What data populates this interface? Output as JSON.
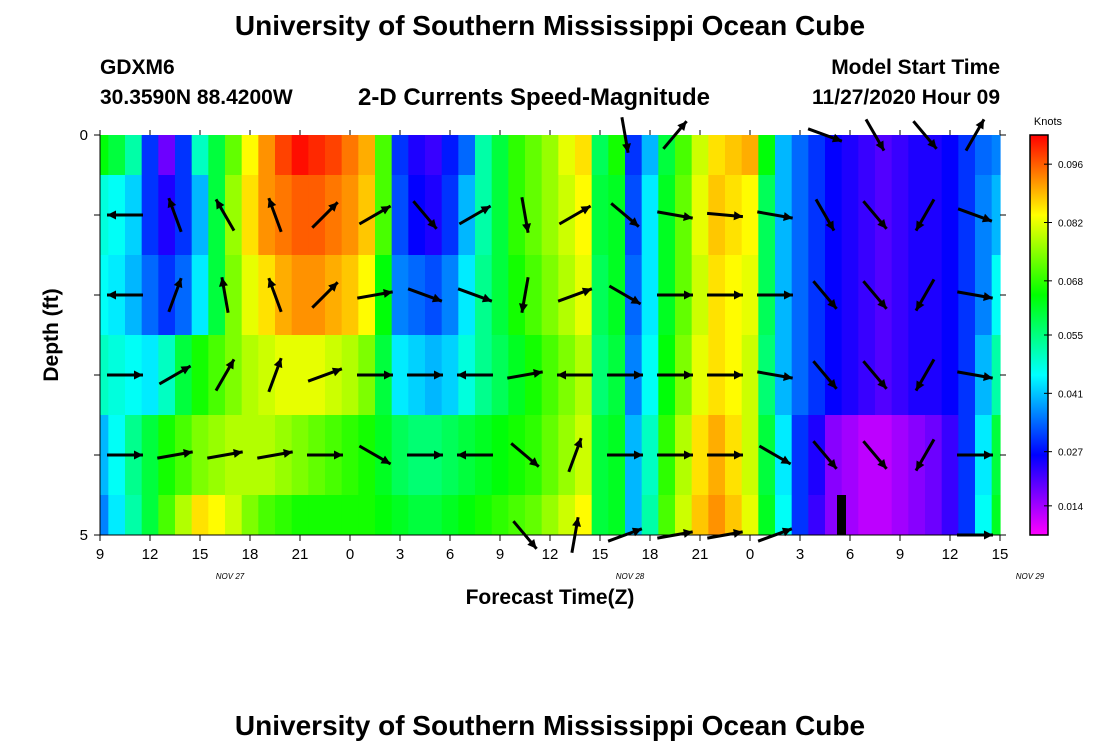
{
  "title": "University of Southern Mississippi Ocean Cube",
  "footer_title": "University of Southern Mississippi Ocean Cube",
  "station": "GDXM6",
  "coordinates": "30.3590N 88.4200W",
  "model_start_label": "Model Start Time",
  "model_start_value": "11/27/2020 Hour 09",
  "chart_data": {
    "type": "heatmap",
    "title": "2-D Currents Speed-Magnitude",
    "xlabel": "Forecast Time(Z)",
    "ylabel": "Depth (ft)",
    "ylim": [
      0,
      5
    ],
    "y_ticks": [
      "0",
      "5"
    ],
    "x_ticks": [
      "9",
      "12",
      "15",
      "18",
      "21",
      "0",
      "3",
      "6",
      "9",
      "12",
      "15",
      "18",
      "21",
      "0",
      "3",
      "6",
      "9",
      "12",
      "15"
    ],
    "date_labels": [
      {
        "text": "NOV 27",
        "at_tick": 3
      },
      {
        "text": "NOV 28",
        "at_tick": 11
      },
      {
        "text": "NOV 29",
        "at_tick": 19
      }
    ],
    "colorbar": {
      "unit": "Knots",
      "min": 0.007,
      "max": 0.103,
      "ticks": [
        0.014,
        0.027,
        0.041,
        0.055,
        0.068,
        0.082,
        0.096
      ],
      "tick_labels": [
        "0.014",
        "0.027",
        "0.041",
        "0.055",
        "0.068",
        "0.082",
        "0.096"
      ]
    },
    "time_hours": [
      0,
      1,
      2,
      3,
      4,
      5,
      6,
      7,
      8,
      9,
      10,
      11,
      12,
      13,
      14,
      15,
      16,
      17,
      18,
      19,
      20,
      21,
      22,
      23,
      24,
      25,
      26,
      27,
      28,
      29,
      30,
      31,
      32,
      33,
      34,
      35,
      36,
      37,
      38,
      39,
      40,
      41,
      42,
      43,
      44,
      45,
      46,
      47,
      48,
      49,
      50,
      51,
      52,
      53,
      54
    ],
    "depth_layers_ft": [
      "0.0-0.5",
      "0.5-1.5",
      "1.5-2.5",
      "2.5-3.5",
      "3.5-4.5",
      "4.5-5.0"
    ],
    "speed_knots": [
      [
        0.064,
        0.06,
        0.052,
        0.03,
        0.018,
        0.03,
        0.05,
        0.06,
        0.072,
        0.084,
        0.092,
        0.098,
        0.102,
        0.1,
        0.098,
        0.094,
        0.09,
        0.07,
        0.03,
        0.024,
        0.022,
        0.028,
        0.034,
        0.052,
        0.06,
        0.068,
        0.072,
        0.076,
        0.082,
        0.086,
        0.058,
        0.066,
        0.03,
        0.04,
        0.06,
        0.07,
        0.08,
        0.086,
        0.088,
        0.09,
        0.064,
        0.04,
        0.034,
        0.03,
        0.026,
        0.024,
        0.022,
        0.02,
        0.022,
        0.024,
        0.024,
        0.026,
        0.03,
        0.034,
        0.036
      ],
      [
        0.048,
        0.046,
        0.042,
        0.03,
        0.024,
        0.03,
        0.04,
        0.06,
        0.076,
        0.086,
        0.092,
        0.094,
        0.096,
        0.096,
        0.094,
        0.092,
        0.088,
        0.07,
        0.032,
        0.026,
        0.024,
        0.03,
        0.04,
        0.052,
        0.06,
        0.068,
        0.072,
        0.076,
        0.08,
        0.084,
        0.06,
        0.062,
        0.032,
        0.044,
        0.062,
        0.072,
        0.082,
        0.088,
        0.086,
        0.084,
        0.058,
        0.04,
        0.034,
        0.03,
        0.026,
        0.024,
        0.022,
        0.02,
        0.022,
        0.024,
        0.024,
        0.026,
        0.03,
        0.036,
        0.04
      ],
      [
        0.046,
        0.044,
        0.04,
        0.034,
        0.03,
        0.034,
        0.044,
        0.06,
        0.074,
        0.082,
        0.086,
        0.09,
        0.092,
        0.092,
        0.09,
        0.088,
        0.084,
        0.064,
        0.036,
        0.034,
        0.032,
        0.036,
        0.044,
        0.054,
        0.06,
        0.066,
        0.07,
        0.074,
        0.078,
        0.082,
        0.058,
        0.062,
        0.034,
        0.044,
        0.062,
        0.072,
        0.08,
        0.086,
        0.084,
        0.082,
        0.058,
        0.04,
        0.034,
        0.03,
        0.026,
        0.024,
        0.022,
        0.02,
        0.022,
        0.024,
        0.024,
        0.026,
        0.03,
        0.036,
        0.046
      ],
      [
        0.05,
        0.048,
        0.046,
        0.044,
        0.05,
        0.06,
        0.066,
        0.07,
        0.074,
        0.078,
        0.08,
        0.082,
        0.082,
        0.082,
        0.08,
        0.078,
        0.074,
        0.06,
        0.044,
        0.042,
        0.04,
        0.042,
        0.048,
        0.054,
        0.058,
        0.062,
        0.066,
        0.07,
        0.074,
        0.078,
        0.056,
        0.06,
        0.036,
        0.046,
        0.064,
        0.074,
        0.082,
        0.086,
        0.084,
        0.08,
        0.056,
        0.04,
        0.034,
        0.03,
        0.026,
        0.024,
        0.022,
        0.02,
        0.022,
        0.024,
        0.024,
        0.026,
        0.03,
        0.04,
        0.052
      ],
      [
        0.04,
        0.046,
        0.054,
        0.06,
        0.066,
        0.07,
        0.074,
        0.076,
        0.078,
        0.078,
        0.078,
        0.076,
        0.074,
        0.072,
        0.07,
        0.068,
        0.066,
        0.062,
        0.058,
        0.056,
        0.056,
        0.058,
        0.06,
        0.062,
        0.064,
        0.066,
        0.068,
        0.072,
        0.076,
        0.08,
        0.06,
        0.062,
        0.04,
        0.05,
        0.068,
        0.078,
        0.086,
        0.09,
        0.086,
        0.08,
        0.06,
        0.044,
        0.03,
        0.024,
        0.016,
        0.014,
        0.012,
        0.012,
        0.014,
        0.016,
        0.018,
        0.022,
        0.03,
        0.044,
        0.06
      ],
      [
        0.036,
        0.044,
        0.052,
        0.06,
        0.07,
        0.078,
        0.086,
        0.084,
        0.08,
        0.074,
        0.07,
        0.068,
        0.066,
        0.066,
        0.066,
        0.066,
        0.066,
        0.064,
        0.062,
        0.06,
        0.06,
        0.062,
        0.064,
        0.066,
        0.068,
        0.07,
        0.072,
        0.076,
        0.08,
        0.084,
        0.06,
        0.062,
        0.04,
        0.052,
        0.07,
        0.08,
        0.088,
        0.092,
        0.088,
        0.082,
        0.062,
        0.046,
        0.03,
        0.022,
        0.016,
        0.014,
        0.012,
        0.012,
        0.014,
        0.016,
        0.018,
        0.022,
        0.03,
        0.046,
        0.062
      ]
    ],
    "vector_rows_depth_index": [
      0,
      1,
      2,
      3,
      4,
      5
    ],
    "vector_hours": [
      1.5,
      4.5,
      7.5,
      10.5,
      13.5,
      16.5,
      19.5,
      22.5,
      25.5,
      28.5,
      31.5,
      34.5,
      37.5,
      40.5,
      43.5,
      46.5,
      49.5,
      52.5
    ],
    "vector_directions_deg": [
      [
        null,
        null,
        null,
        null,
        null,
        null,
        null,
        null,
        null,
        null,
        170,
        40,
        null,
        null,
        110,
        150,
        140,
        30
      ],
      [
        270,
        340,
        330,
        340,
        45,
        60,
        140,
        60,
        170,
        60,
        130,
        100,
        95,
        100,
        150,
        140,
        210,
        110
      ],
      [
        270,
        20,
        350,
        340,
        45,
        80,
        110,
        110,
        190,
        70,
        120,
        90,
        90,
        90,
        140,
        140,
        210,
        100
      ],
      [
        90,
        60,
        30,
        20,
        70,
        90,
        90,
        270,
        80,
        270,
        90,
        90,
        90,
        100,
        140,
        140,
        210,
        100
      ],
      [
        90,
        80,
        80,
        80,
        90,
        120,
        90,
        270,
        130,
        20,
        90,
        90,
        90,
        120,
        140,
        140,
        210,
        90
      ],
      [
        null,
        null,
        null,
        null,
        null,
        null,
        null,
        null,
        140,
        10,
        70,
        80,
        80,
        70,
        null,
        null,
        null,
        90
      ]
    ]
  }
}
